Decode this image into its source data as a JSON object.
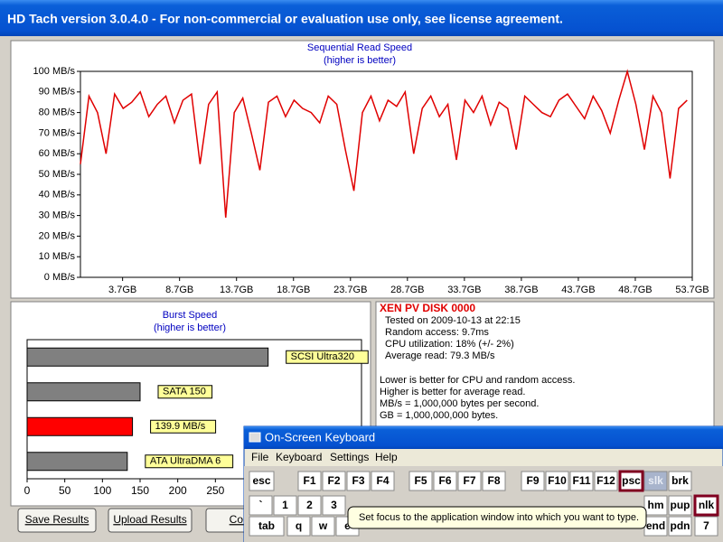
{
  "window": {
    "title": "HD Tach version 3.0.4.0  - For non-commercial or evaluation use only, see license agreement."
  },
  "read_chart": {
    "type": "line",
    "title": "Sequential Read Speed",
    "subtitle": "(higher is better)",
    "color": "#e00000",
    "x": [
      0,
      0.75,
      1.5,
      2.25,
      3,
      3.75,
      4.5,
      5.25,
      6,
      6.75,
      7.5,
      8.25,
      9,
      9.75,
      10.5,
      11.25,
      12,
      12.75,
      13.5,
      14.25,
      15,
      15.75,
      16.5,
      17.25,
      18,
      18.75,
      19.5,
      20.25,
      21,
      21.75,
      22.5,
      23.25,
      24,
      24.75,
      25.5,
      26.25,
      27,
      27.75,
      28.5,
      29.25,
      30,
      30.75,
      31.5,
      32.25,
      33,
      33.75,
      34.5,
      35.25,
      36,
      36.75,
      37.5,
      38.25,
      39,
      39.75,
      40.5,
      41.25,
      42,
      42.75,
      43.5,
      44.25,
      45,
      45.75,
      46.5,
      47.25,
      48,
      48.75,
      49.5,
      50.25,
      51,
      51.75,
      52.5,
      53.25
    ],
    "values": [
      55,
      88,
      80,
      60,
      89,
      82,
      85,
      90,
      78,
      84,
      88,
      75,
      86,
      89,
      55,
      84,
      90,
      29,
      80,
      87,
      70,
      52,
      85,
      88,
      78,
      86,
      82,
      80,
      75,
      88,
      84,
      62,
      42,
      80,
      88,
      76,
      86,
      83,
      90,
      60,
      82,
      88,
      78,
      84,
      57,
      86,
      80,
      88,
      74,
      85,
      82,
      62,
      88,
      84,
      80,
      78,
      86,
      89,
      83,
      77,
      88,
      81,
      70,
      86,
      100,
      84,
      62,
      88,
      80,
      48,
      82,
      86
    ],
    "xlim": [
      0,
      53.7
    ],
    "xticks": [
      {
        "value": 3.7,
        "label": "3.7GB"
      },
      {
        "value": 8.7,
        "label": "8.7GB"
      },
      {
        "value": 13.7,
        "label": "13.7GB"
      },
      {
        "value": 18.7,
        "label": "18.7GB"
      },
      {
        "value": 23.7,
        "label": "23.7GB"
      },
      {
        "value": 28.7,
        "label": "28.7GB"
      },
      {
        "value": 33.7,
        "label": "33.7GB"
      },
      {
        "value": 38.7,
        "label": "38.7GB"
      },
      {
        "value": 43.7,
        "label": "43.7GB"
      },
      {
        "value": 48.7,
        "label": "48.7GB"
      },
      {
        "value": 53.7,
        "label": "53.7GB"
      }
    ],
    "ylim": [
      0,
      100
    ],
    "yticks": [
      {
        "value": 0,
        "label": "0 MB/s"
      },
      {
        "value": 10,
        "label": "10 MB/s"
      },
      {
        "value": 20,
        "label": "20 MB/s"
      },
      {
        "value": 30,
        "label": "30 MB/s"
      },
      {
        "value": 40,
        "label": "40 MB/s"
      },
      {
        "value": 50,
        "label": "50 MB/s"
      },
      {
        "value": 60,
        "label": "60 MB/s"
      },
      {
        "value": 70,
        "label": "70 MB/s"
      },
      {
        "value": 80,
        "label": "80 MB/s"
      },
      {
        "value": 90,
        "label": "90 MB/s"
      },
      {
        "value": 100,
        "label": "100 MB/s"
      }
    ]
  },
  "burst_chart": {
    "type": "bar",
    "title": "Burst Speed",
    "subtitle": "(higher is better)",
    "bars": [
      {
        "label": "SCSI Ultra320",
        "value": 320,
        "color": "#808080"
      },
      {
        "label": "SATA 150",
        "value": 150,
        "color": "#808080"
      },
      {
        "label": "139.9 MB/s",
        "value": 139.9,
        "color": "#ff0000"
      },
      {
        "label": "ATA UltraDMA 6",
        "value": 133,
        "color": "#808080"
      }
    ],
    "xlim": [
      0,
      444
    ],
    "xticks": [
      0,
      50,
      100,
      150,
      200,
      250
    ]
  },
  "info": {
    "disk": "XEN PV DISK 0000",
    "results": [
      "Tested on 2009-10-13 at 22:15",
      "Random access: 9.7ms",
      "CPU utilization: 18% (+/- 2%)",
      "Average read: 79.3 MB/s"
    ],
    "notes": [
      "Lower is better for CPU and random access.",
      "Higher is better for average read.",
      "MB/s = 1,000,000 bytes per second.",
      "GB = 1,000,000,000 bytes."
    ]
  },
  "buttons": [
    "Save Results",
    "Upload Results",
    "Compa"
  ],
  "keyboard": {
    "title": "On-Screen Keyboard",
    "menu": [
      "File",
      "Keyboard",
      "Settings",
      "Help"
    ],
    "rows": [
      [
        "esc",
        "F1",
        "F2",
        "F3",
        "F4",
        "F5",
        "F6",
        "F7",
        "F8",
        "F9",
        "F10",
        "F11",
        "F12",
        "psc",
        "slk",
        "brk"
      ],
      [
        "`",
        "1",
        "2",
        "3",
        "hm",
        "pup",
        "nlk"
      ],
      [
        "tab",
        "q",
        "w",
        "e",
        "end",
        "pdn",
        "7"
      ]
    ],
    "tooltip": "Set focus to the application window into which you want to type."
  }
}
